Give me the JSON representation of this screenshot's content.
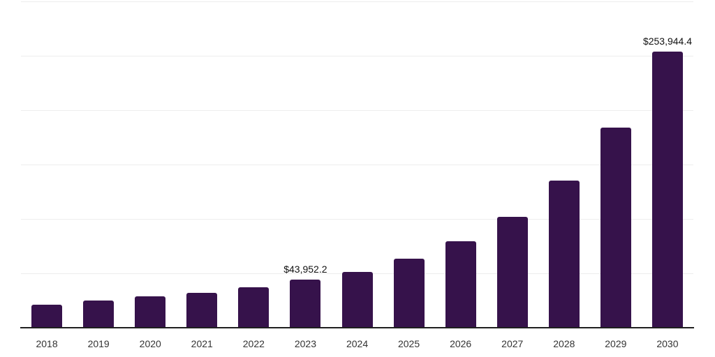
{
  "chart": {
    "background_color": "#ffffff",
    "bar_color": "#36124b",
    "axis_line_color": "#1f1f1f",
    "gridline_color": "#ededed",
    "tick_label_color": "#333333",
    "data_label_color": "#111111"
  },
  "chart_data": {
    "type": "bar",
    "title": "",
    "xlabel": "",
    "ylabel": "",
    "categories": [
      "2018",
      "2019",
      "2020",
      "2021",
      "2022",
      "2023",
      "2024",
      "2025",
      "2026",
      "2027",
      "2028",
      "2029",
      "2030"
    ],
    "values": [
      21300,
      25100,
      28750,
      32400,
      37500,
      43952.2,
      51500,
      63200,
      79400,
      101800,
      135000,
      184000,
      253944.4
    ],
    "data_labels": [
      {
        "category": "2023",
        "text": "$43,952.2"
      },
      {
        "category": "2030",
        "text": "$253,944.4"
      }
    ],
    "ylim": [
      0,
      300000
    ],
    "gridline_values": [
      50000,
      100000,
      150000,
      200000,
      250000,
      300000
    ],
    "grid": "horizontal",
    "legend_position": "none",
    "y_axis_tick_labels": "none"
  }
}
